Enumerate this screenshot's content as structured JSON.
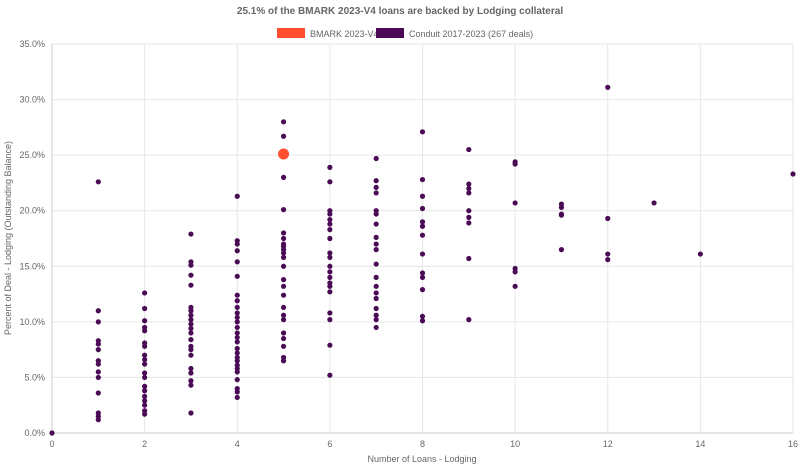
{
  "chart_data": {
    "type": "scatter",
    "title": "25.1% of the BMARK 2023-V4 loans are backed by Lodging collateral",
    "xlabel": "Number of Loans - Lodging",
    "ylabel": "Percent of Deal - Lodging (Outstanding Balance)",
    "xlim": [
      0,
      16
    ],
    "ylim": [
      0,
      35
    ],
    "x_ticks": [
      "0",
      "2",
      "4",
      "6",
      "8",
      "10",
      "12",
      "14",
      "16"
    ],
    "y_ticks": [
      "0.0%",
      "5.0%",
      "10.0%",
      "15.0%",
      "20.0%",
      "25.0%",
      "30.0%",
      "35.0%"
    ],
    "grid": true,
    "legend_position": "top-center",
    "series": [
      {
        "name": "BMARK 2023-V4",
        "color": "#ff4d2e",
        "points": [
          [
            5,
            25.1
          ]
        ]
      },
      {
        "name": "Conduit 2017-2023 (267 deals)",
        "color": "#4a0a55",
        "points": [
          [
            0,
            0.0
          ],
          [
            1,
            22.6
          ],
          [
            1,
            11.0
          ],
          [
            1,
            10.0
          ],
          [
            1,
            8.3
          ],
          [
            1,
            8.0
          ],
          [
            1,
            7.5
          ],
          [
            1,
            6.5
          ],
          [
            1,
            6.2
          ],
          [
            1,
            5.5
          ],
          [
            1,
            5.0
          ],
          [
            1,
            3.6
          ],
          [
            1,
            1.8
          ],
          [
            1,
            1.5
          ],
          [
            1,
            1.2
          ],
          [
            2,
            12.6
          ],
          [
            2,
            11.2
          ],
          [
            2,
            10.1
          ],
          [
            2,
            9.5
          ],
          [
            2,
            9.2
          ],
          [
            2,
            8.1
          ],
          [
            2,
            7.8
          ],
          [
            2,
            7.0
          ],
          [
            2,
            6.6
          ],
          [
            2,
            6.2
          ],
          [
            2,
            5.4
          ],
          [
            2,
            5.0
          ],
          [
            2,
            4.2
          ],
          [
            2,
            3.8
          ],
          [
            2,
            3.3
          ],
          [
            2,
            2.9
          ],
          [
            2,
            2.5
          ],
          [
            2,
            2.0
          ],
          [
            2,
            1.7
          ],
          [
            3,
            17.9
          ],
          [
            3,
            15.4
          ],
          [
            3,
            15.1
          ],
          [
            3,
            14.2
          ],
          [
            3,
            13.3
          ],
          [
            3,
            11.3
          ],
          [
            3,
            11.0
          ],
          [
            3,
            10.6
          ],
          [
            3,
            10.2
          ],
          [
            3,
            9.8
          ],
          [
            3,
            9.4
          ],
          [
            3,
            9.0
          ],
          [
            3,
            8.4
          ],
          [
            3,
            7.8
          ],
          [
            3,
            7.5
          ],
          [
            3,
            7.0
          ],
          [
            3,
            5.8
          ],
          [
            3,
            5.4
          ],
          [
            3,
            4.7
          ],
          [
            3,
            4.3
          ],
          [
            3,
            1.8
          ],
          [
            4,
            21.3
          ],
          [
            4,
            17.3
          ],
          [
            4,
            17.0
          ],
          [
            4,
            16.4
          ],
          [
            4,
            15.4
          ],
          [
            4,
            14.1
          ],
          [
            4,
            12.4
          ],
          [
            4,
            11.9
          ],
          [
            4,
            11.3
          ],
          [
            4,
            10.8
          ],
          [
            4,
            10.4
          ],
          [
            4,
            10.0
          ],
          [
            4,
            9.5
          ],
          [
            4,
            9.0
          ],
          [
            4,
            8.6
          ],
          [
            4,
            8.2
          ],
          [
            4,
            7.6
          ],
          [
            4,
            7.2
          ],
          [
            4,
            6.8
          ],
          [
            4,
            6.5
          ],
          [
            4,
            6.1
          ],
          [
            4,
            5.8
          ],
          [
            4,
            5.5
          ],
          [
            4,
            4.8
          ],
          [
            4,
            4.0
          ],
          [
            4,
            3.7
          ],
          [
            4,
            3.2
          ],
          [
            5,
            28.0
          ],
          [
            5,
            26.7
          ],
          [
            5,
            23.0
          ],
          [
            5,
            20.1
          ],
          [
            5,
            18.0
          ],
          [
            5,
            17.5
          ],
          [
            5,
            17.0
          ],
          [
            5,
            16.8
          ],
          [
            5,
            16.5
          ],
          [
            5,
            16.2
          ],
          [
            5,
            15.8
          ],
          [
            5,
            15.0
          ],
          [
            5,
            13.8
          ],
          [
            5,
            13.2
          ],
          [
            5,
            12.4
          ],
          [
            5,
            11.3
          ],
          [
            5,
            10.6
          ],
          [
            5,
            10.2
          ],
          [
            5,
            9.0
          ],
          [
            5,
            8.5
          ],
          [
            5,
            7.8
          ],
          [
            5,
            6.8
          ],
          [
            5,
            6.5
          ],
          [
            6,
            23.9
          ],
          [
            6,
            22.6
          ],
          [
            6,
            20.0
          ],
          [
            6,
            19.7
          ],
          [
            6,
            19.2
          ],
          [
            6,
            18.8
          ],
          [
            6,
            18.3
          ],
          [
            6,
            17.5
          ],
          [
            6,
            16.2
          ],
          [
            6,
            15.8
          ],
          [
            6,
            15.0
          ],
          [
            6,
            14.5
          ],
          [
            6,
            14.0
          ],
          [
            6,
            13.5
          ],
          [
            6,
            13.2
          ],
          [
            6,
            12.7
          ],
          [
            6,
            10.8
          ],
          [
            6,
            10.2
          ],
          [
            6,
            7.9
          ],
          [
            6,
            5.2
          ],
          [
            7,
            24.7
          ],
          [
            7,
            22.7
          ],
          [
            7,
            22.1
          ],
          [
            7,
            21.6
          ],
          [
            7,
            20.0
          ],
          [
            7,
            19.7
          ],
          [
            7,
            18.8
          ],
          [
            7,
            17.6
          ],
          [
            7,
            17.0
          ],
          [
            7,
            16.5
          ],
          [
            7,
            15.2
          ],
          [
            7,
            14.0
          ],
          [
            7,
            13.2
          ],
          [
            7,
            12.6
          ],
          [
            7,
            12.1
          ],
          [
            7,
            11.2
          ],
          [
            7,
            10.6
          ],
          [
            7,
            10.2
          ],
          [
            7,
            9.5
          ],
          [
            8,
            27.1
          ],
          [
            8,
            22.8
          ],
          [
            8,
            21.3
          ],
          [
            8,
            20.2
          ],
          [
            8,
            19.0
          ],
          [
            8,
            18.6
          ],
          [
            8,
            17.8
          ],
          [
            8,
            16.1
          ],
          [
            8,
            14.4
          ],
          [
            8,
            14.0
          ],
          [
            8,
            12.9
          ],
          [
            8,
            10.5
          ],
          [
            8,
            10.1
          ],
          [
            9,
            25.5
          ],
          [
            9,
            22.4
          ],
          [
            9,
            22.0
          ],
          [
            9,
            21.6
          ],
          [
            9,
            20.0
          ],
          [
            9,
            19.4
          ],
          [
            9,
            18.9
          ],
          [
            9,
            15.7
          ],
          [
            9,
            10.2
          ],
          [
            10,
            24.4
          ],
          [
            10,
            24.2
          ],
          [
            10,
            20.7
          ],
          [
            10,
            14.8
          ],
          [
            10,
            14.5
          ],
          [
            10,
            13.2
          ],
          [
            11,
            20.6
          ],
          [
            11,
            20.3
          ],
          [
            11,
            19.7
          ],
          [
            11,
            19.6
          ],
          [
            11,
            16.5
          ],
          [
            12,
            31.1
          ],
          [
            12,
            19.3
          ],
          [
            12,
            16.1
          ],
          [
            12,
            15.6
          ],
          [
            13,
            20.7
          ],
          [
            14,
            16.1
          ],
          [
            16,
            23.3
          ]
        ]
      }
    ]
  }
}
